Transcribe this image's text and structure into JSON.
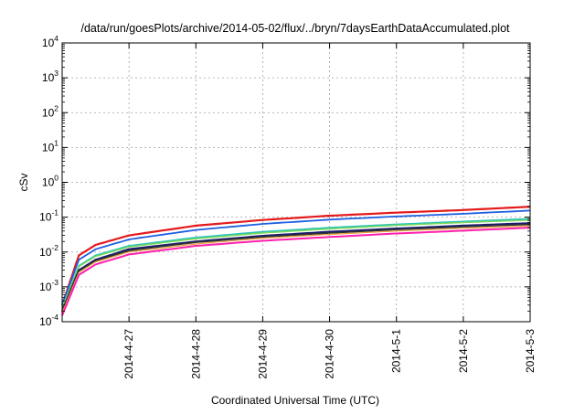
{
  "chart_data": {
    "type": "line",
    "title": "/data/run/goesPlots/archive/2014-05-02/flux/../bryn/7daysEarthDataAccumulated.plot",
    "xlabel": "Coordinated Universal Time (UTC)",
    "ylabel": "cSv",
    "yscale": "log",
    "ylim": [
      0.0001,
      10000
    ],
    "xlim": [
      "2014-04-26",
      "2014-05-03"
    ],
    "grid": true,
    "x_ticks": [
      "2014-4-27",
      "2014-4-28",
      "2014-4-29",
      "2014-4-30",
      "2014-5-1",
      "2014-5-2",
      "2014-5-3"
    ],
    "y_ticks": [
      {
        "base": "10",
        "exp": "-4",
        "value": 0.0001
      },
      {
        "base": "10",
        "exp": "-3",
        "value": 0.001
      },
      {
        "base": "10",
        "exp": "-2",
        "value": 0.01
      },
      {
        "base": "10",
        "exp": "-1",
        "value": 0.1
      },
      {
        "base": "10",
        "exp": "0",
        "value": 1
      },
      {
        "base": "10",
        "exp": "1",
        "value": 10
      },
      {
        "base": "10",
        "exp": "2",
        "value": 100
      },
      {
        "base": "10",
        "exp": "3",
        "value": 1000
      },
      {
        "base": "10",
        "exp": "4",
        "value": 10000
      }
    ],
    "x": [
      "2014-04-26",
      "2014-04-26T06:00",
      "2014-04-26T12:00",
      "2014-04-27",
      "2014-04-28",
      "2014-04-29",
      "2014-04-30",
      "2014-05-01",
      "2014-05-02",
      "2014-05-03"
    ],
    "series": [
      {
        "color": "#e41a1c",
        "width": 2.2,
        "values": [
          0.0003,
          0.008,
          0.016,
          0.03,
          0.057,
          0.083,
          0.11,
          0.135,
          0.16,
          0.2
        ]
      },
      {
        "color": "#1f5fe0",
        "width": 1.8,
        "values": [
          0.0003,
          0.006,
          0.012,
          0.023,
          0.043,
          0.064,
          0.085,
          0.105,
          0.125,
          0.155
        ]
      },
      {
        "color": "#2ec4b6",
        "width": 1.8,
        "values": [
          0.00025,
          0.004,
          0.008,
          0.015,
          0.026,
          0.038,
          0.05,
          0.062,
          0.075,
          0.09
        ]
      },
      {
        "color": "#7ed957",
        "width": 1.4,
        "values": [
          0.00025,
          0.0038,
          0.0075,
          0.014,
          0.024,
          0.035,
          0.046,
          0.058,
          0.07,
          0.082
        ]
      },
      {
        "color": "#1a1a6e",
        "width": 2.2,
        "values": [
          0.0002,
          0.003,
          0.006,
          0.012,
          0.02,
          0.029,
          0.038,
          0.047,
          0.057,
          0.067
        ]
      },
      {
        "color": "#333333",
        "width": 1.6,
        "values": [
          0.0002,
          0.0028,
          0.0056,
          0.011,
          0.019,
          0.027,
          0.035,
          0.044,
          0.053,
          0.062
        ]
      },
      {
        "color": "#e8a33d",
        "width": 1.2,
        "values": [
          0.00018,
          0.0026,
          0.0052,
          0.01,
          0.017,
          0.025,
          0.032,
          0.04,
          0.048,
          0.056
        ]
      },
      {
        "color": "#ff1fae",
        "width": 2.0,
        "values": [
          0.00015,
          0.0022,
          0.0044,
          0.0085,
          0.015,
          0.021,
          0.027,
          0.034,
          0.041,
          0.05
        ]
      }
    ]
  }
}
